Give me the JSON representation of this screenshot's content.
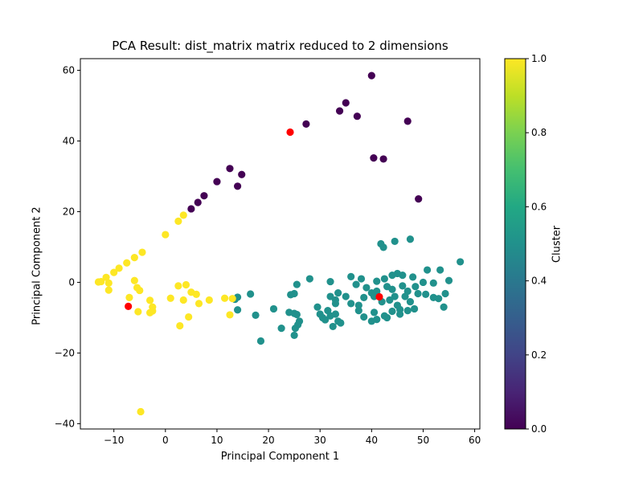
{
  "chart_data": {
    "type": "scatter",
    "title": "PCA Result: dist_matrix matrix reduced to 2 dimensions",
    "xlabel": "Principal Component 1",
    "ylabel": "Principal Component 2",
    "xlim": [
      -16.5,
      61
    ],
    "ylim": [
      -41.5,
      63.3
    ],
    "xticks": [
      -10,
      0,
      10,
      20,
      30,
      40,
      50,
      60
    ],
    "yticks": [
      -40,
      -20,
      0,
      20,
      40,
      60
    ],
    "grid": false,
    "colormap": "viridis",
    "colorbar": {
      "label": "Cluster",
      "range": [
        0.0,
        1.0
      ],
      "ticks": [
        "0.0",
        "0.2",
        "0.4",
        "0.6",
        "0.8",
        "1.0"
      ]
    },
    "colors": {
      "cluster_0": "#440154",
      "cluster_0_5": "#21918c",
      "cluster_1": "#fde725",
      "centroid": "#ff0000"
    },
    "series": [
      {
        "cluster": 0.0,
        "points": [
          [
            40,
            58.5
          ],
          [
            35,
            50.8
          ],
          [
            33.8,
            48.5
          ],
          [
            37.2,
            47
          ],
          [
            27.3,
            44.8
          ],
          [
            47,
            45.6
          ],
          [
            40.4,
            35.2
          ],
          [
            42.3,
            34.9
          ],
          [
            49.1,
            23.6
          ],
          [
            14.8,
            30.5
          ],
          [
            12.5,
            32.2
          ],
          [
            14,
            27.2
          ],
          [
            10,
            28.5
          ],
          [
            7.5,
            24.5
          ],
          [
            6.3,
            22.6
          ],
          [
            5,
            20.8
          ]
        ]
      },
      {
        "cluster": 0.5,
        "points": [
          [
            57.2,
            5.8
          ],
          [
            53.3,
            3.5
          ],
          [
            50.8,
            3.5
          ],
          [
            47.5,
            12.2
          ],
          [
            44.5,
            11.6
          ],
          [
            41.8,
            10.9
          ],
          [
            42.3,
            9.9
          ],
          [
            36,
            1.6
          ],
          [
            28,
            1
          ],
          [
            32,
            0.2
          ],
          [
            37,
            -0.6
          ],
          [
            25.5,
            -0.6
          ],
          [
            55,
            0.5
          ],
          [
            52,
            -0.2
          ],
          [
            50,
            0
          ],
          [
            48,
            1.5
          ],
          [
            46,
            2
          ],
          [
            45,
            2.5
          ],
          [
            44,
            2
          ],
          [
            42.5,
            1
          ],
          [
            41,
            0.3
          ],
          [
            43,
            -1.2
          ],
          [
            44,
            -2
          ],
          [
            46,
            -1
          ],
          [
            47,
            -2.5
          ],
          [
            48.5,
            -1.2
          ],
          [
            49,
            -3.2
          ],
          [
            50.5,
            -3.4
          ],
          [
            52,
            -4.3
          ],
          [
            53,
            -4.6
          ],
          [
            54.3,
            -3.2
          ],
          [
            54,
            -7
          ],
          [
            48.3,
            -7.5
          ],
          [
            47,
            -8
          ],
          [
            45.5,
            -7.7
          ],
          [
            44,
            -8.2
          ],
          [
            45.5,
            -9
          ],
          [
            43,
            -10
          ],
          [
            41,
            -10.5
          ],
          [
            40,
            -11
          ],
          [
            38.5,
            -9.8
          ],
          [
            37.5,
            -8
          ],
          [
            37.5,
            -6.5
          ],
          [
            38.5,
            -4.3
          ],
          [
            40,
            -3
          ],
          [
            40.5,
            -4
          ],
          [
            36,
            -6
          ],
          [
            35,
            -4
          ],
          [
            33.5,
            -3
          ],
          [
            32,
            -4
          ],
          [
            33,
            -5
          ],
          [
            33,
            -6
          ],
          [
            31.5,
            -8
          ],
          [
            30,
            -9
          ],
          [
            30.5,
            -10
          ],
          [
            31,
            -10.6
          ],
          [
            32,
            -9.5
          ],
          [
            33,
            -9
          ],
          [
            33.5,
            -11
          ],
          [
            34,
            -11.5
          ],
          [
            32.5,
            -12.5
          ],
          [
            29.5,
            -7
          ],
          [
            24.3,
            -3.5
          ],
          [
            25,
            -3.2
          ],
          [
            21,
            -7.5
          ],
          [
            24,
            -8.5
          ],
          [
            25,
            -8.8
          ],
          [
            25.5,
            -9.1
          ],
          [
            26,
            -11
          ],
          [
            25.7,
            -12
          ],
          [
            25.2,
            -13
          ],
          [
            25,
            -15
          ],
          [
            22.5,
            -13
          ],
          [
            18.5,
            -16.6
          ],
          [
            17.5,
            -9.3
          ],
          [
            16.5,
            -3.3
          ],
          [
            14,
            -4.2
          ],
          [
            13.5,
            -4.8
          ],
          [
            14,
            -7.8
          ],
          [
            38,
            1
          ],
          [
            39,
            -1.5
          ],
          [
            41,
            -2.5
          ],
          [
            42,
            -5.5
          ],
          [
            43.5,
            -5
          ],
          [
            44.5,
            -4
          ],
          [
            46.5,
            -4
          ],
          [
            47.5,
            -5.5
          ],
          [
            45,
            -6.5
          ],
          [
            42.5,
            -9.5
          ],
          [
            40.5,
            -8.5
          ]
        ]
      },
      {
        "cluster": 1.0,
        "points": [
          [
            -13,
            0.1
          ],
          [
            -12.5,
            0.2
          ],
          [
            -11.5,
            1.4
          ],
          [
            -11,
            -0.2
          ],
          [
            -11,
            -2.2
          ],
          [
            -10,
            2.8
          ],
          [
            -9,
            4
          ],
          [
            -7.5,
            5.5
          ],
          [
            -6,
            7
          ],
          [
            -4.5,
            8.5
          ],
          [
            -6,
            0.5
          ],
          [
            -5.5,
            -1.5
          ],
          [
            -5,
            -2.3
          ],
          [
            -7,
            -4.3
          ],
          [
            -5.3,
            -8.3
          ],
          [
            -3,
            -5.1
          ],
          [
            -2.5,
            -7
          ],
          [
            -2.5,
            -8.1
          ],
          [
            -3,
            -8.6
          ],
          [
            -4.8,
            -36.6
          ],
          [
            0,
            13.5
          ],
          [
            2.5,
            17.3
          ],
          [
            3.5,
            19
          ],
          [
            1,
            -4.5
          ],
          [
            2.5,
            -1
          ],
          [
            4,
            -0.7
          ],
          [
            5,
            -2.8
          ],
          [
            3.5,
            -5
          ],
          [
            6,
            -3.4
          ],
          [
            6.5,
            -6
          ],
          [
            8.5,
            -5
          ],
          [
            11.5,
            -4.5
          ],
          [
            13,
            -4.6
          ],
          [
            12.5,
            -9.2
          ],
          [
            4.5,
            -9.8
          ],
          [
            2.8,
            -12.3
          ]
        ]
      }
    ],
    "centroids": [
      [
        24.2,
        42.5
      ],
      [
        -7.2,
        -6.8
      ],
      [
        41.5,
        -4.1
      ]
    ]
  }
}
